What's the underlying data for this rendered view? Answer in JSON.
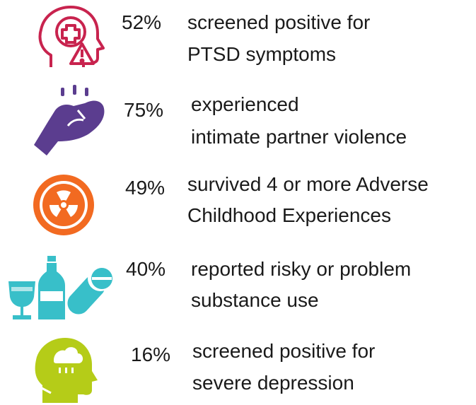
{
  "items": [
    {
      "percent": "52%",
      "lines": [
        "screened positive for",
        "PTSD symptoms"
      ]
    },
    {
      "percent": "75%",
      "lines": [
        "experienced",
        "intimate partner violence"
      ]
    },
    {
      "percent": "49%",
      "lines": [
        "survived 4 or more Adverse",
        "Childhood Experiences"
      ]
    },
    {
      "percent": "40%",
      "lines": [
        "reported risky or problem",
        "substance use"
      ]
    },
    {
      "percent": "16%",
      "lines": [
        "screened positive for",
        "severe depression"
      ]
    }
  ]
}
